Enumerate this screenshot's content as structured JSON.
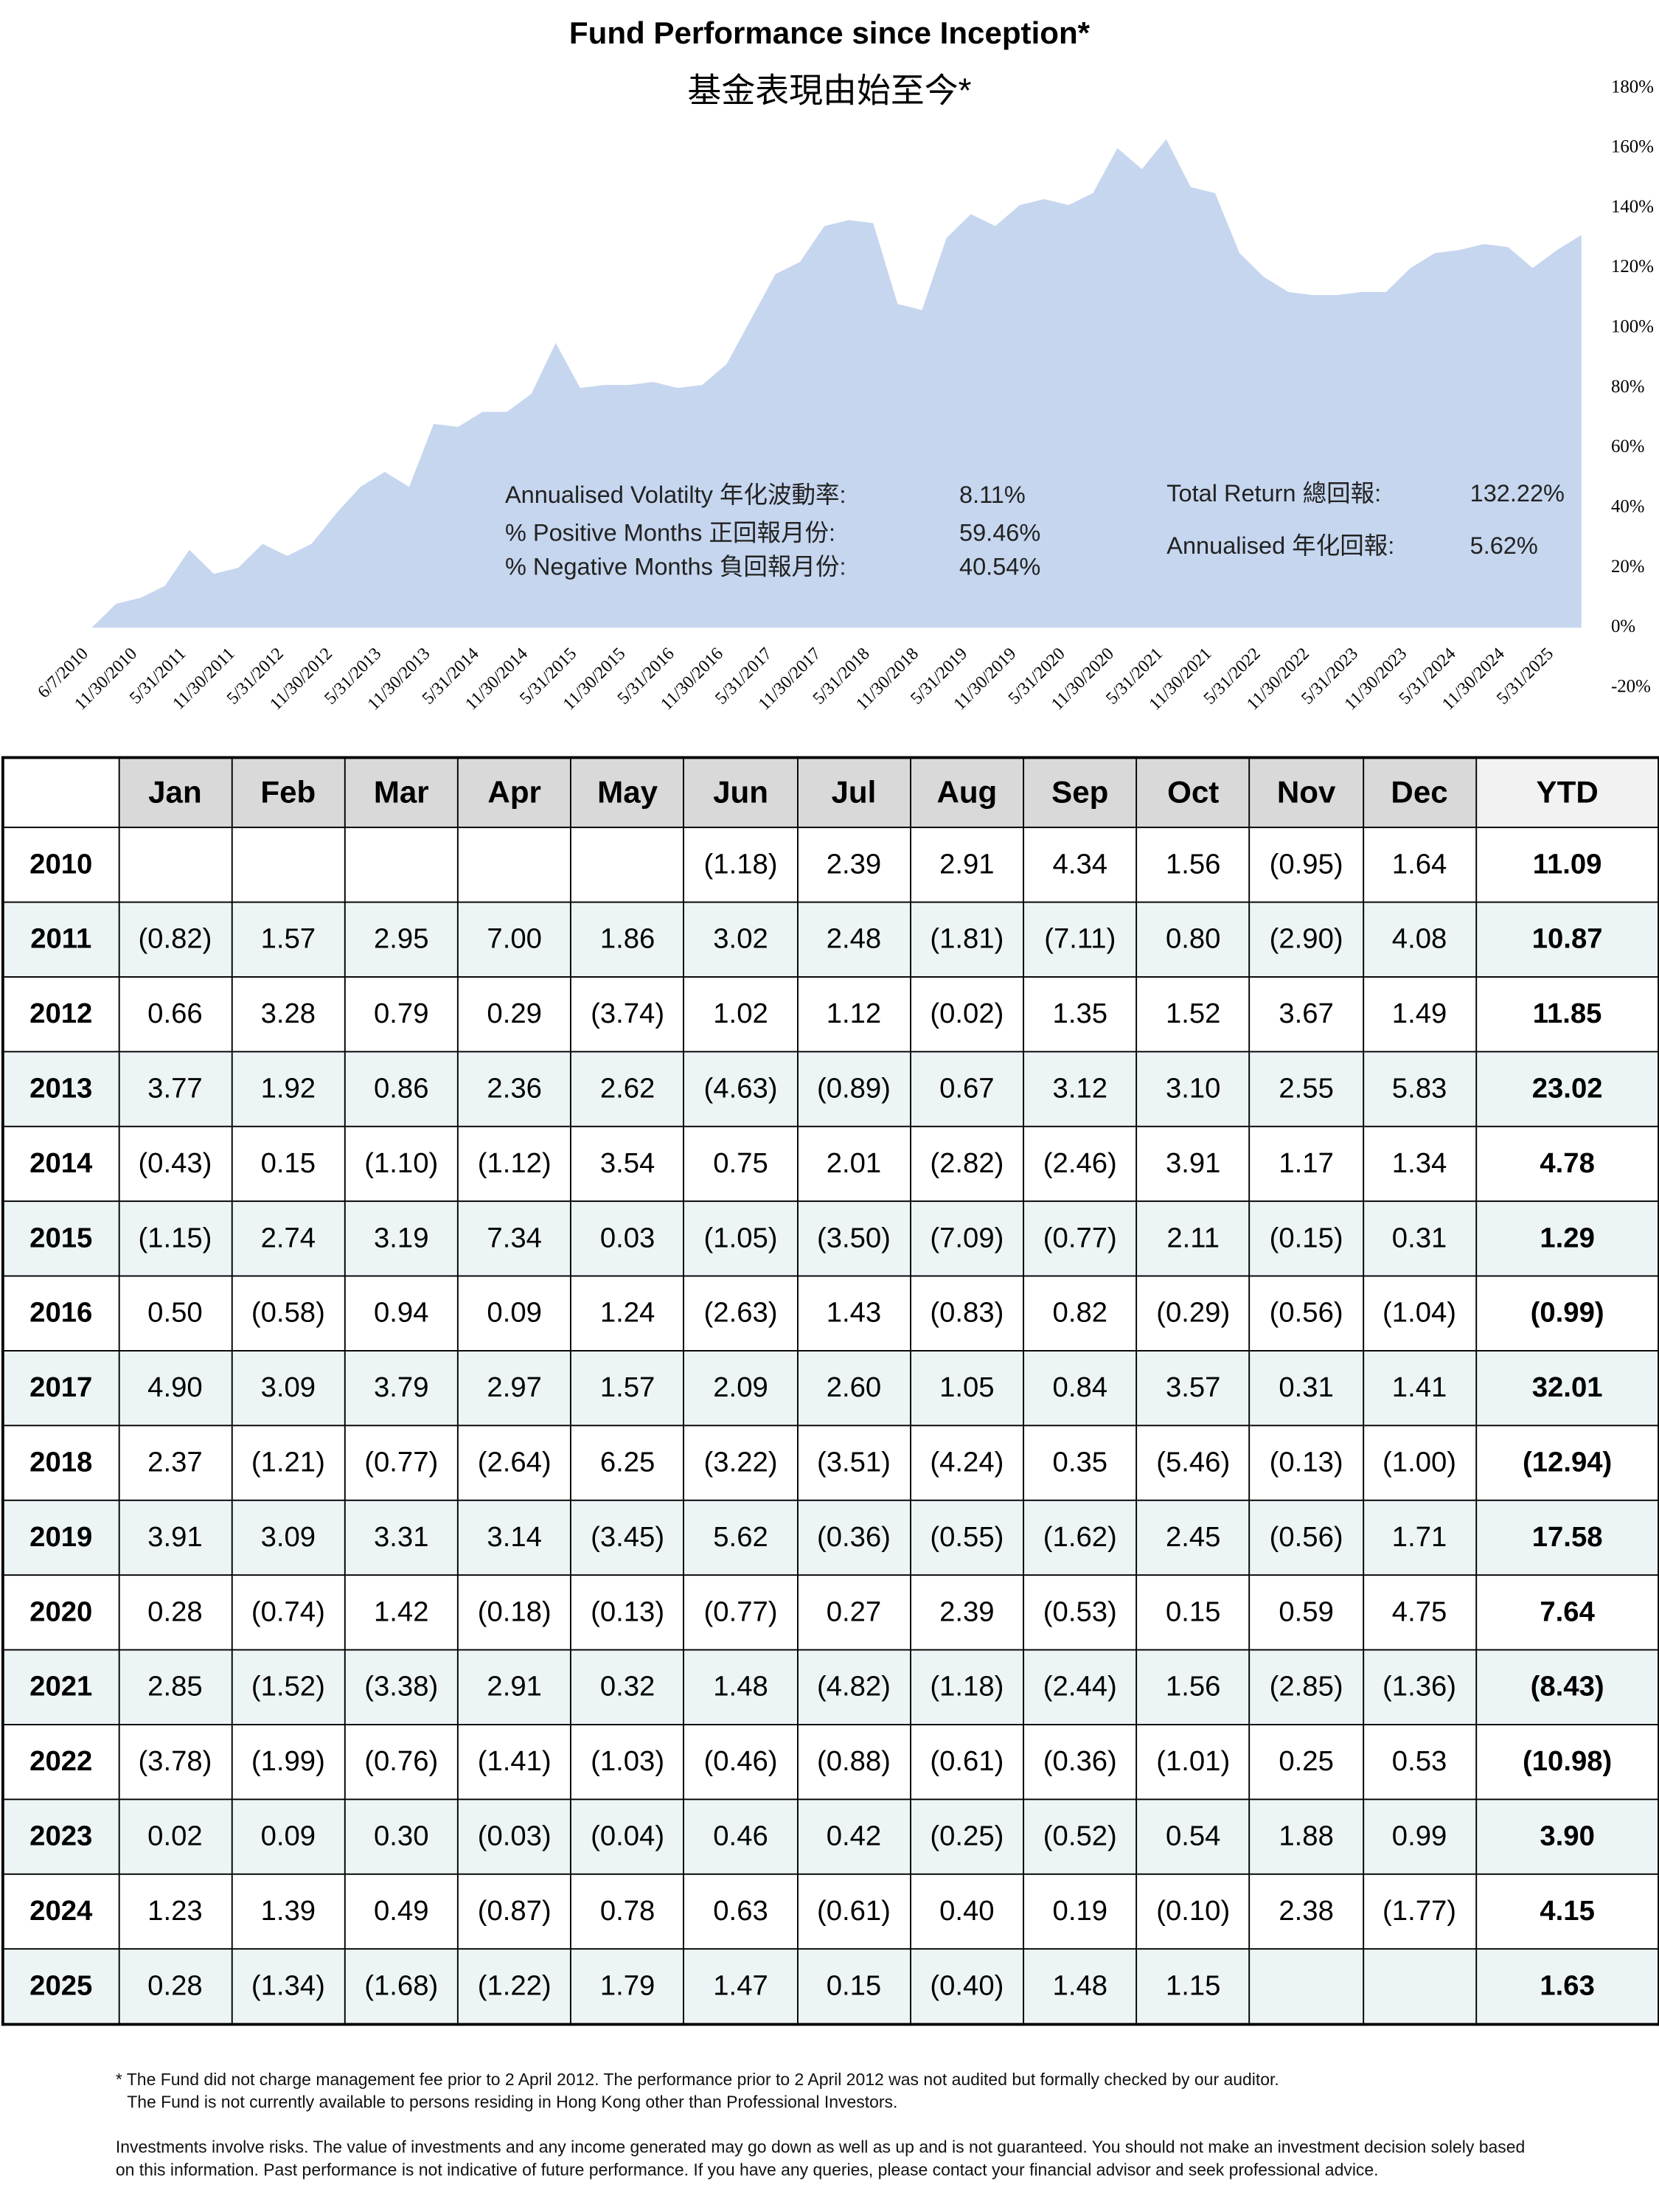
{
  "chart_data": {
    "type": "area",
    "title": "Fund Performance since Inception*",
    "subtitle": "基金表現由始至今*",
    "x": [
      "6/7/2010",
      null,
      "11/30/2010",
      null,
      "5/31/2011",
      null,
      "11/30/2011",
      null,
      "5/31/2012",
      null,
      "11/30/2012",
      null,
      "5/31/2013",
      null,
      "11/30/2013",
      null,
      "5/31/2014",
      null,
      "11/30/2014",
      null,
      "5/31/2015",
      null,
      "11/30/2015",
      null,
      "5/31/2016",
      null,
      "11/30/2016",
      null,
      "5/31/2017",
      null,
      "11/30/2017",
      null,
      "5/31/2018",
      null,
      "11/30/2018",
      null,
      "5/31/2019",
      null,
      "11/30/2019",
      null,
      "5/31/2020",
      null,
      "11/30/2020",
      null,
      "5/31/2021",
      null,
      "11/30/2021",
      null,
      "5/31/2022",
      null,
      "11/30/2022",
      null,
      "5/31/2023",
      null,
      "11/30/2023",
      null,
      "5/31/2024",
      null,
      "11/30/2024",
      null,
      "5/31/2025",
      null
    ],
    "values": [
      0,
      8,
      10,
      14,
      26,
      18,
      20,
      28,
      24,
      28,
      38,
      47,
      52,
      47,
      68,
      67,
      72,
      72,
      78,
      95,
      80,
      81,
      81,
      82,
      80,
      81,
      88,
      103,
      118,
      122,
      134,
      136,
      135,
      108,
      106,
      130,
      138,
      134,
      141,
      143,
      141,
      145,
      160,
      153,
      163,
      147,
      145,
      125,
      117,
      112,
      111,
      111,
      112,
      112,
      120,
      125,
      126,
      128,
      127,
      120,
      126,
      131
    ],
    "color": "#c6d6ef",
    "ylim": [
      -20,
      180
    ],
    "yticks": [
      {
        "value": -20,
        "label": "-20%"
      },
      {
        "value": 0,
        "label": "0%"
      },
      {
        "value": 20,
        "label": "20%"
      },
      {
        "value": 40,
        "label": "40%"
      },
      {
        "value": 60,
        "label": "60%"
      },
      {
        "value": 80,
        "label": "80%"
      },
      {
        "value": 100,
        "label": "100%"
      },
      {
        "value": 120,
        "label": "120%"
      },
      {
        "value": 140,
        "label": "140%"
      },
      {
        "value": 160,
        "label": "160%"
      },
      {
        "value": 180,
        "label": "180%"
      }
    ],
    "grid": false,
    "stats_left": [
      {
        "label": "Annualised Volatilty  年化波動率:",
        "value": "8.11%"
      },
      {
        "label": "% Positive Months  正回報月份:",
        "value": "59.46%"
      },
      {
        "label": "% Negative Months  負回報月份:",
        "value": "40.54%"
      }
    ],
    "stats_right": [
      {
        "label": "Total Return 總回報:",
        "value": "132.22%"
      },
      {
        "label": "Annualised 年化回報:",
        "value": "5.62%"
      }
    ]
  },
  "table": {
    "header": [
      null,
      "Jan",
      "Feb",
      "Mar",
      "Apr",
      "May",
      "Jun",
      "Jul",
      "Aug",
      "Sep",
      "Oct",
      "Nov",
      "Dec",
      "YTD"
    ],
    "rows": [
      [
        "2010",
        null,
        null,
        null,
        null,
        null,
        "(1.18)",
        "2.39",
        "2.91",
        "4.34",
        "1.56",
        "(0.95)",
        "1.64",
        "11.09"
      ],
      [
        "2011",
        "(0.82)",
        "1.57",
        "2.95",
        "7.00",
        "1.86",
        "3.02",
        "2.48",
        "(1.81)",
        "(7.11)",
        "0.80",
        "(2.90)",
        "4.08",
        "10.87"
      ],
      [
        "2012",
        "0.66",
        "3.28",
        "0.79",
        "0.29",
        "(3.74)",
        "1.02",
        "1.12",
        "(0.02)",
        "1.35",
        "1.52",
        "3.67",
        "1.49",
        "11.85"
      ],
      [
        "2013",
        "3.77",
        "1.92",
        "0.86",
        "2.36",
        "2.62",
        "(4.63)",
        "(0.89)",
        "0.67",
        "3.12",
        "3.10",
        "2.55",
        "5.83",
        "23.02"
      ],
      [
        "2014",
        "(0.43)",
        "0.15",
        "(1.10)",
        "(1.12)",
        "3.54",
        "0.75",
        "2.01",
        "(2.82)",
        "(2.46)",
        "3.91",
        "1.17",
        "1.34",
        "4.78"
      ],
      [
        "2015",
        "(1.15)",
        "2.74",
        "3.19",
        "7.34",
        "0.03",
        "(1.05)",
        "(3.50)",
        "(7.09)",
        "(0.77)",
        "2.11",
        "(0.15)",
        "0.31",
        "1.29"
      ],
      [
        "2016",
        "0.50",
        "(0.58)",
        "0.94",
        "0.09",
        "1.24",
        "(2.63)",
        "1.43",
        "(0.83)",
        "0.82",
        "(0.29)",
        "(0.56)",
        "(1.04)",
        "(0.99)"
      ],
      [
        "2017",
        "4.90",
        "3.09",
        "3.79",
        "2.97",
        "1.57",
        "2.09",
        "2.60",
        "1.05",
        "0.84",
        "3.57",
        "0.31",
        "1.41",
        "32.01"
      ],
      [
        "2018",
        "2.37",
        "(1.21)",
        "(0.77)",
        "(2.64)",
        "6.25",
        "(3.22)",
        "(3.51)",
        "(4.24)",
        "0.35",
        "(5.46)",
        "(0.13)",
        "(1.00)",
        "(12.94)"
      ],
      [
        "2019",
        "3.91",
        "3.09",
        "3.31",
        "3.14",
        "(3.45)",
        "5.62",
        "(0.36)",
        "(0.55)",
        "(1.62)",
        "2.45",
        "(0.56)",
        "1.71",
        "17.58"
      ],
      [
        "2020",
        "0.28",
        "(0.74)",
        "1.42",
        "(0.18)",
        "(0.13)",
        "(0.77)",
        "0.27",
        "2.39",
        "(0.53)",
        "0.15",
        "0.59",
        "4.75",
        "7.64"
      ],
      [
        "2021",
        "2.85",
        "(1.52)",
        "(3.38)",
        "2.91",
        "0.32",
        "1.48",
        "(4.82)",
        "(1.18)",
        "(2.44)",
        "1.56",
        "(2.85)",
        "(1.36)",
        "(8.43)"
      ],
      [
        "2022",
        "(3.78)",
        "(1.99)",
        "(0.76)",
        "(1.41)",
        "(1.03)",
        "(0.46)",
        "(0.88)",
        "(0.61)",
        "(0.36)",
        "(1.01)",
        "0.25",
        "0.53",
        "(10.98)"
      ],
      [
        "2023",
        "0.02",
        "0.09",
        "0.30",
        "(0.03)",
        "(0.04)",
        "0.46",
        "0.42",
        "(0.25)",
        "(0.52)",
        "0.54",
        "1.88",
        "0.99",
        "3.90"
      ],
      [
        "2024",
        "1.23",
        "1.39",
        "0.49",
        "(0.87)",
        "0.78",
        "0.63",
        "(0.61)",
        "0.40",
        "0.19",
        "(0.10)",
        "2.38",
        "(1.77)",
        "4.15"
      ],
      [
        "2025",
        "0.28",
        "(1.34)",
        "(1.68)",
        "(1.22)",
        "1.79",
        "1.47",
        "0.15",
        "(0.40)",
        "1.48",
        "1.15",
        null,
        null,
        "1.63"
      ]
    ]
  },
  "notes": [
    "* The Fund did not charge management fee prior to 2 April 2012.  The performance prior to 2 April 2012 was not audited but formally checked by our auditor.",
    "The Fund is not currently available to persons residing in Hong Kong other than Professional Investors.",
    "Investments involve risks. The value of investments and any income generated may go down as well as up and is not guaranteed. You should not make an investment decision solely based on this information. Past performance is not indicative of future performance. If you have any queries, please contact your financial advisor and seek professional advice."
  ]
}
